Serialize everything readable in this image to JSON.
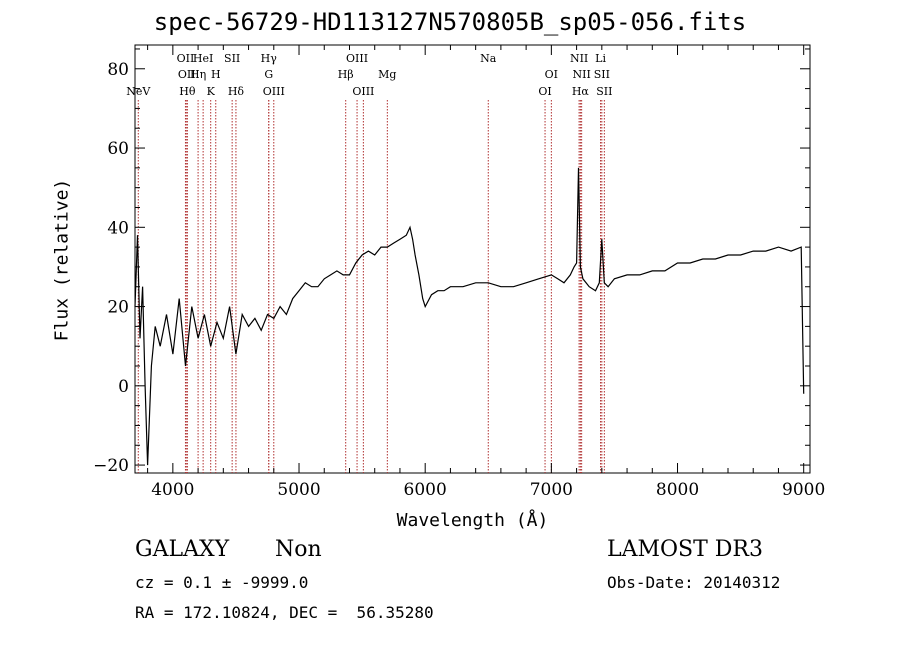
{
  "title": "spec-56729-HD113127N570805B_sp05-056.fits",
  "xlabel": "Wavelength (Å)",
  "ylabel": "Flux (relative)",
  "info": {
    "object_class": "GALAXY",
    "subclass": "Non",
    "survey": "LAMOST DR3",
    "cz_line": "cz = 0.1 ± -9999.0",
    "obs_date_line": "Obs-Date: 20140312",
    "coords_line": "RA = 172.10824, DEC =  56.35280"
  },
  "colors": {
    "line": "#000000",
    "marker": "#b03030"
  },
  "chart_data": {
    "type": "line",
    "title": "spec-56729-HD113127N570805B_sp05-056.fits",
    "xlabel": "Wavelength (Å)",
    "ylabel": "Flux (relative)",
    "xlim": [
      3700,
      9050
    ],
    "ylim": [
      -22,
      86
    ],
    "xticks": [
      4000,
      5000,
      6000,
      7000,
      8000,
      9000
    ],
    "yticks": [
      -20,
      0,
      20,
      40,
      60,
      80
    ],
    "grid": false,
    "series": [
      {
        "x": [
          3700,
          3720,
          3740,
          3760,
          3780,
          3800,
          3830,
          3860,
          3900,
          3950,
          4000,
          4050,
          4100,
          4150,
          4200,
          4250,
          4300,
          4350,
          4400,
          4450,
          4500,
          4550,
          4600,
          4650,
          4700,
          4750,
          4800,
          4850,
          4900,
          4950,
          5000,
          5050,
          5100,
          5150,
          5200,
          5250,
          5300,
          5350,
          5400,
          5450,
          5500,
          5550,
          5600,
          5650,
          5700,
          5750,
          5800,
          5850,
          5880,
          5900,
          5920,
          5950,
          5980,
          6000,
          6050,
          6100,
          6150,
          6200,
          6300,
          6400,
          6500,
          6600,
          6700,
          6800,
          6900,
          7000,
          7050,
          7100,
          7150,
          7180,
          7200,
          7215,
          7230,
          7250,
          7300,
          7350,
          7380,
          7400,
          7420,
          7450,
          7500,
          7600,
          7700,
          7800,
          7900,
          8000,
          8100,
          8200,
          8300,
          8400,
          8500,
          8600,
          8700,
          8800,
          8900,
          8980,
          9000
        ],
        "y": [
          20,
          38,
          12,
          25,
          0,
          -20,
          5,
          15,
          10,
          18,
          8,
          22,
          5,
          20,
          12,
          18,
          10,
          16,
          12,
          20,
          8,
          18,
          15,
          17,
          14,
          18,
          17,
          20,
          18,
          22,
          24,
          26,
          25,
          25,
          27,
          28,
          29,
          28,
          28,
          31,
          33,
          34,
          33,
          35,
          35,
          36,
          37,
          38,
          40,
          37,
          33,
          28,
          22,
          20,
          23,
          24,
          24,
          25,
          25,
          26,
          26,
          25,
          25,
          26,
          27,
          28,
          27,
          26,
          28,
          30,
          31,
          55,
          30,
          27,
          25,
          24,
          26,
          37,
          26,
          25,
          27,
          28,
          28,
          29,
          29,
          31,
          31,
          32,
          32,
          33,
          33,
          34,
          34,
          35,
          34,
          35,
          -2
        ]
      }
    ],
    "line_markers": [
      {
        "label": "NeV",
        "x": 3726,
        "row": 3
      },
      {
        "label": "OII",
        "x": 4100,
        "row": 1
      },
      {
        "label": "OII",
        "x": 4110,
        "row": 2
      },
      {
        "label": "Hθ",
        "x": 4115,
        "row": 3
      },
      {
        "label": "Hη",
        "x": 4200,
        "row": 2
      },
      {
        "label": "HeI",
        "x": 4240,
        "row": 1
      },
      {
        "label": "K",
        "x": 4300,
        "row": 3
      },
      {
        "label": "H",
        "x": 4340,
        "row": 2
      },
      {
        "label": "SII",
        "x": 4470,
        "row": 1
      },
      {
        "label": "Hδ",
        "x": 4500,
        "row": 3
      },
      {
        "label": "Hγ",
        "x": 4760,
        "row": 1
      },
      {
        "label": "G",
        "x": 4760,
        "row": 2
      },
      {
        "label": "OIII",
        "x": 4800,
        "row": 3
      },
      {
        "label": "OIII",
        "x": 5460,
        "row": 1
      },
      {
        "label": "Hβ",
        "x": 5370,
        "row": 2
      },
      {
        "label": "OIII",
        "x": 5510,
        "row": 3
      },
      {
        "label": "Mg",
        "x": 5700,
        "row": 2
      },
      {
        "label": "Na",
        "x": 6500,
        "row": 1
      },
      {
        "label": "OI",
        "x": 6950,
        "row": 3
      },
      {
        "label": "OI",
        "x": 7000,
        "row": 2
      },
      {
        "label": "NII",
        "x": 7220,
        "row": 1
      },
      {
        "label": "NII",
        "x": 7240,
        "row": 2
      },
      {
        "label": "Hα",
        "x": 7230,
        "row": 3
      },
      {
        "label": "Li",
        "x": 7390,
        "row": 1
      },
      {
        "label": "SII",
        "x": 7400,
        "row": 2
      },
      {
        "label": "SII",
        "x": 7420,
        "row": 3
      }
    ]
  }
}
